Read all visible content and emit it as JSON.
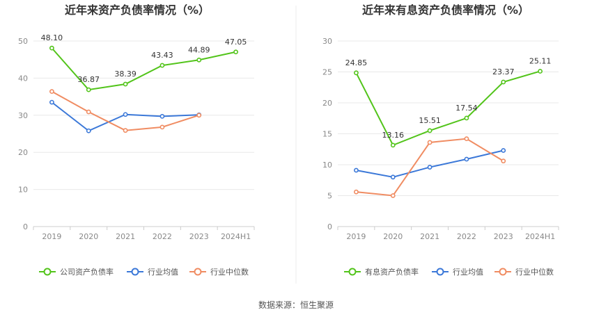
{
  "colors": {
    "green": "#52c41a",
    "blue": "#3b78d8",
    "orange": "#f08c62"
  },
  "source": "数据来源：恒生聚源",
  "chart_data": [
    {
      "type": "line",
      "title": "近年来资产负债率情况（%）",
      "categories": [
        "2019",
        "2020",
        "2021",
        "2022",
        "2023",
        "2024H1"
      ],
      "ylim": [
        0,
        50
      ],
      "yticks": [
        "0",
        "10",
        "20",
        "30",
        "40",
        "50"
      ],
      "grid": true,
      "legend_position": "bottom",
      "series": [
        {
          "name": "公司资产负债率",
          "color": "#52c41a",
          "values": [
            48.1,
            36.87,
            38.39,
            43.43,
            44.89,
            47.05
          ],
          "labels": [
            "48.10",
            "36.87",
            "38.39",
            "43.43",
            "44.89",
            "47.05"
          ]
        },
        {
          "name": "行业均值",
          "color": "#3b78d8",
          "values": [
            33.5,
            25.8,
            30.2,
            29.7,
            30.1,
            null
          ]
        },
        {
          "name": "行业中位数",
          "color": "#f08c62",
          "values": [
            36.4,
            30.9,
            25.9,
            26.8,
            30.0,
            null
          ]
        }
      ]
    },
    {
      "type": "line",
      "title": "近年来有息资产负债率情况（%）",
      "categories": [
        "2019",
        "2020",
        "2021",
        "2022",
        "2023",
        "2024H1"
      ],
      "ylim": [
        0,
        30
      ],
      "yticks": [
        "0",
        "5",
        "10",
        "15",
        "20",
        "25",
        "30"
      ],
      "grid": true,
      "legend_position": "bottom",
      "series": [
        {
          "name": "有息资产负债率",
          "color": "#52c41a",
          "values": [
            24.85,
            13.16,
            15.51,
            17.54,
            23.37,
            25.11
          ],
          "labels": [
            "24.85",
            "13.16",
            "15.51",
            "17.54",
            "23.37",
            "25.11"
          ]
        },
        {
          "name": "行业均值",
          "color": "#3b78d8",
          "values": [
            9.1,
            8.0,
            9.6,
            10.9,
            12.3,
            null
          ]
        },
        {
          "name": "行业中位数",
          "color": "#f08c62",
          "values": [
            5.6,
            5.0,
            13.6,
            14.2,
            10.6,
            null
          ]
        }
      ]
    }
  ]
}
